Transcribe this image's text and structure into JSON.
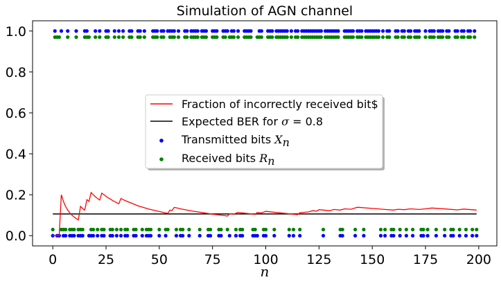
{
  "chart_data": {
    "type": "scatter",
    "title": "Simulation of AGN channel",
    "xlabel": "n",
    "ylabel": "",
    "xlim": [
      -9.5,
      208.5
    ],
    "ylim": [
      -0.05,
      1.05
    ],
    "x_ticks": [
      0,
      25,
      50,
      75,
      100,
      125,
      150,
      175,
      200
    ],
    "y_ticks": [
      0.0,
      0.2,
      0.4,
      0.6,
      0.8,
      1.0
    ],
    "y_tick_labels": [
      "0.0",
      "0.2",
      "0.4",
      "0.6",
      "0.8",
      "1.0"
    ],
    "grid": false,
    "legend_position": "center",
    "legend": [
      {
        "kind": "line",
        "color": "#ff0000",
        "label": "Fraction of incorrectly received bit$"
      },
      {
        "kind": "line",
        "color": "#000000",
        "label_prefix": "Expected BER for ",
        "label_symbol": "σ",
        "label_suffix": " = 0.8"
      },
      {
        "kind": "dot",
        "color": "#0000ff",
        "label_prefix": "Transmitted bits ",
        "label_symbol": "X",
        "label_sub": "n"
      },
      {
        "kind": "dot",
        "color": "#008000",
        "label_prefix": "Received bits ",
        "label_symbol": "R",
        "label_sub": "n"
      }
    ],
    "expected_ber": 0.106,
    "fraction_series": {
      "name": "Fraction of incorrectly received bit$",
      "color": "#ff0000",
      "points": [
        [
          0,
          0.0
        ],
        [
          1,
          0.0
        ],
        [
          2,
          0.0
        ],
        [
          3,
          0.0
        ],
        [
          4,
          0.2
        ],
        [
          5,
          0.167
        ],
        [
          6,
          0.143
        ],
        [
          7,
          0.125
        ],
        [
          8,
          0.111
        ],
        [
          9,
          0.1
        ],
        [
          10,
          0.091
        ],
        [
          11,
          0.083
        ],
        [
          12,
          0.077
        ],
        [
          13,
          0.143
        ],
        [
          14,
          0.133
        ],
        [
          15,
          0.125
        ],
        [
          16,
          0.176
        ],
        [
          17,
          0.167
        ],
        [
          18,
          0.211
        ],
        [
          19,
          0.2
        ],
        [
          20,
          0.19
        ],
        [
          21,
          0.182
        ],
        [
          22,
          0.174
        ],
        [
          23,
          0.208
        ],
        [
          24,
          0.2
        ],
        [
          25,
          0.192
        ],
        [
          26,
          0.185
        ],
        [
          27,
          0.179
        ],
        [
          28,
          0.172
        ],
        [
          29,
          0.167
        ],
        [
          30,
          0.161
        ],
        [
          31,
          0.156
        ],
        [
          32,
          0.182
        ],
        [
          33,
          0.176
        ],
        [
          35,
          0.167
        ],
        [
          40,
          0.146
        ],
        [
          45,
          0.13
        ],
        [
          50,
          0.118
        ],
        [
          53,
          0.111
        ],
        [
          54,
          0.109
        ],
        [
          55,
          0.125
        ],
        [
          56,
          0.123
        ],
        [
          57,
          0.138
        ],
        [
          58,
          0.136
        ],
        [
          60,
          0.131
        ],
        [
          65,
          0.121
        ],
        [
          70,
          0.113
        ],
        [
          75,
          0.105
        ],
        [
          80,
          0.099
        ],
        [
          82,
          0.096
        ],
        [
          83,
          0.107
        ],
        [
          85,
          0.105
        ],
        [
          87,
          0.114
        ],
        [
          88,
          0.112
        ],
        [
          90,
          0.11
        ],
        [
          95,
          0.104
        ],
        [
          96,
          0.113
        ],
        [
          98,
          0.111
        ],
        [
          100,
          0.119
        ],
        [
          105,
          0.113
        ],
        [
          110,
          0.108
        ],
        [
          115,
          0.103
        ],
        [
          116,
          0.112
        ],
        [
          120,
          0.116
        ],
        [
          122,
          0.122
        ],
        [
          124,
          0.12
        ],
        [
          125,
          0.127
        ],
        [
          130,
          0.122
        ],
        [
          132,
          0.128
        ],
        [
          135,
          0.125
        ],
        [
          137,
          0.131
        ],
        [
          140,
          0.129
        ],
        [
          143,
          0.139
        ],
        [
          150,
          0.133
        ],
        [
          155,
          0.129
        ],
        [
          160,
          0.125
        ],
        [
          162,
          0.129
        ],
        [
          165,
          0.127
        ],
        [
          168,
          0.131
        ],
        [
          172,
          0.128
        ],
        [
          175,
          0.131
        ],
        [
          178,
          0.135
        ],
        [
          185,
          0.13
        ],
        [
          190,
          0.126
        ],
        [
          193,
          0.13
        ],
        [
          199,
          0.125
        ]
      ]
    },
    "transmitted_bits": {
      "name": "Transmitted bits",
      "color": "#0000ff",
      "ones": [
        1,
        4,
        7,
        11,
        15,
        16,
        20,
        22,
        25,
        26,
        29,
        31,
        33,
        36,
        37,
        40,
        41,
        43,
        47,
        48,
        49,
        51,
        52,
        54,
        55,
        56,
        57,
        59,
        62,
        63,
        65,
        66,
        67,
        68,
        70,
        71,
        72,
        75,
        76,
        77,
        80,
        81,
        82,
        84,
        85,
        87,
        90,
        91,
        92,
        93,
        97,
        98,
        101,
        102,
        103,
        105,
        106,
        107,
        108,
        109,
        110,
        112,
        114,
        115,
        117,
        118,
        119,
        120,
        121,
        122,
        123,
        124,
        125,
        126,
        128,
        129,
        130,
        131,
        132,
        133,
        134,
        137,
        138,
        139,
        140,
        141,
        143,
        144,
        145,
        147,
        148,
        149,
        150,
        151,
        152,
        153,
        155,
        157,
        158,
        161,
        162,
        164,
        165,
        167,
        168,
        170,
        171,
        172,
        175,
        177,
        178,
        179,
        181,
        182,
        183,
        185,
        186,
        189,
        190,
        192,
        193,
        195,
        196,
        198
      ],
      "zeros": [
        0,
        2,
        3,
        5,
        6,
        8,
        9,
        10,
        12,
        13,
        14,
        17,
        18,
        19,
        21,
        23,
        24,
        27,
        28,
        30,
        32,
        34,
        35,
        38,
        39,
        42,
        44,
        45,
        46,
        50,
        53,
        58,
        60,
        61,
        64,
        69,
        73,
        74,
        78,
        79,
        83,
        86,
        88,
        89,
        94,
        95,
        96,
        99,
        100,
        104,
        111,
        113,
        116,
        127,
        135,
        136,
        142,
        146,
        154,
        156,
        159,
        160,
        163,
        166,
        169,
        173,
        174,
        176,
        180,
        184,
        187,
        188,
        191,
        194,
        197,
        199
      ]
    },
    "received_bits": {
      "name": "Received bits",
      "color": "#008000",
      "high_value": 0.97,
      "low_value": 0.03,
      "ones": [
        1,
        2,
        3,
        7,
        11,
        15,
        16,
        17,
        20,
        22,
        25,
        26,
        29,
        31,
        33,
        36,
        37,
        40,
        41,
        43,
        47,
        48,
        49,
        51,
        52,
        55,
        56,
        57,
        59,
        62,
        63,
        65,
        66,
        67,
        68,
        70,
        71,
        72,
        75,
        76,
        77,
        80,
        81,
        83,
        84,
        85,
        87,
        90,
        91,
        92,
        93,
        96,
        97,
        98,
        101,
        102,
        103,
        105,
        106,
        107,
        108,
        109,
        110,
        112,
        114,
        115,
        117,
        118,
        119,
        120,
        121,
        122,
        123,
        124,
        125,
        126,
        128,
        129,
        130,
        131,
        132,
        133,
        134,
        137,
        138,
        139,
        140,
        141,
        143,
        144,
        145,
        147,
        148,
        149,
        150,
        151,
        152,
        153,
        155,
        157,
        158,
        161,
        162,
        164,
        165,
        167,
        168,
        170,
        171,
        172,
        175,
        177,
        178,
        179,
        181,
        182,
        183,
        185,
        186,
        189,
        190,
        192,
        193,
        195,
        196,
        198
      ],
      "zeros": [
        0,
        4,
        5,
        6,
        8,
        9,
        10,
        12,
        13,
        14,
        18,
        19,
        21,
        23,
        24,
        27,
        28,
        30,
        32,
        34,
        35,
        38,
        39,
        42,
        44,
        45,
        46,
        50,
        53,
        54,
        58,
        60,
        61,
        64,
        69,
        73,
        74,
        78,
        79,
        82,
        86,
        88,
        89,
        94,
        95,
        99,
        100,
        104,
        111,
        113,
        116,
        127,
        135,
        136,
        142,
        146,
        154,
        156,
        159,
        160,
        163,
        166,
        169,
        173,
        174,
        176,
        180,
        184,
        187,
        188,
        191,
        194,
        197,
        199
      ]
    }
  }
}
